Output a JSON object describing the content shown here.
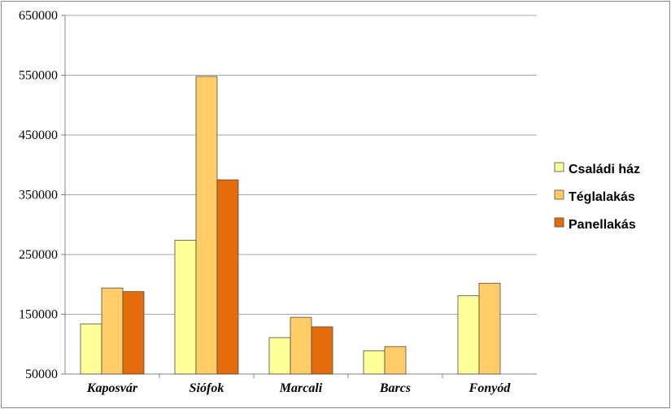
{
  "chart_data": {
    "type": "bar",
    "categories": [
      "Kaposvár",
      "Siófok",
      "Marcali",
      "Barcs",
      "Fonyód"
    ],
    "series": [
      {
        "name": "Családi ház",
        "values": [
          134000,
          274000,
          111000,
          89000,
          181000
        ],
        "color": "#ffff99"
      },
      {
        "name": "Téglalakás",
        "values": [
          194000,
          548000,
          145000,
          96000,
          202000
        ],
        "color": "#ffcc66"
      },
      {
        "name": "Panellakás",
        "values": [
          188000,
          375000,
          129000,
          null,
          null
        ],
        "color": "#e46c0a"
      }
    ],
    "ylim": [
      50000,
      650000
    ],
    "yticks": [
      "50000",
      "150000",
      "250000",
      "350000",
      "450000",
      "550000",
      "650000"
    ],
    "grid": true,
    "legend_position": "right",
    "title": "",
    "xlabel": "",
    "ylabel": ""
  }
}
